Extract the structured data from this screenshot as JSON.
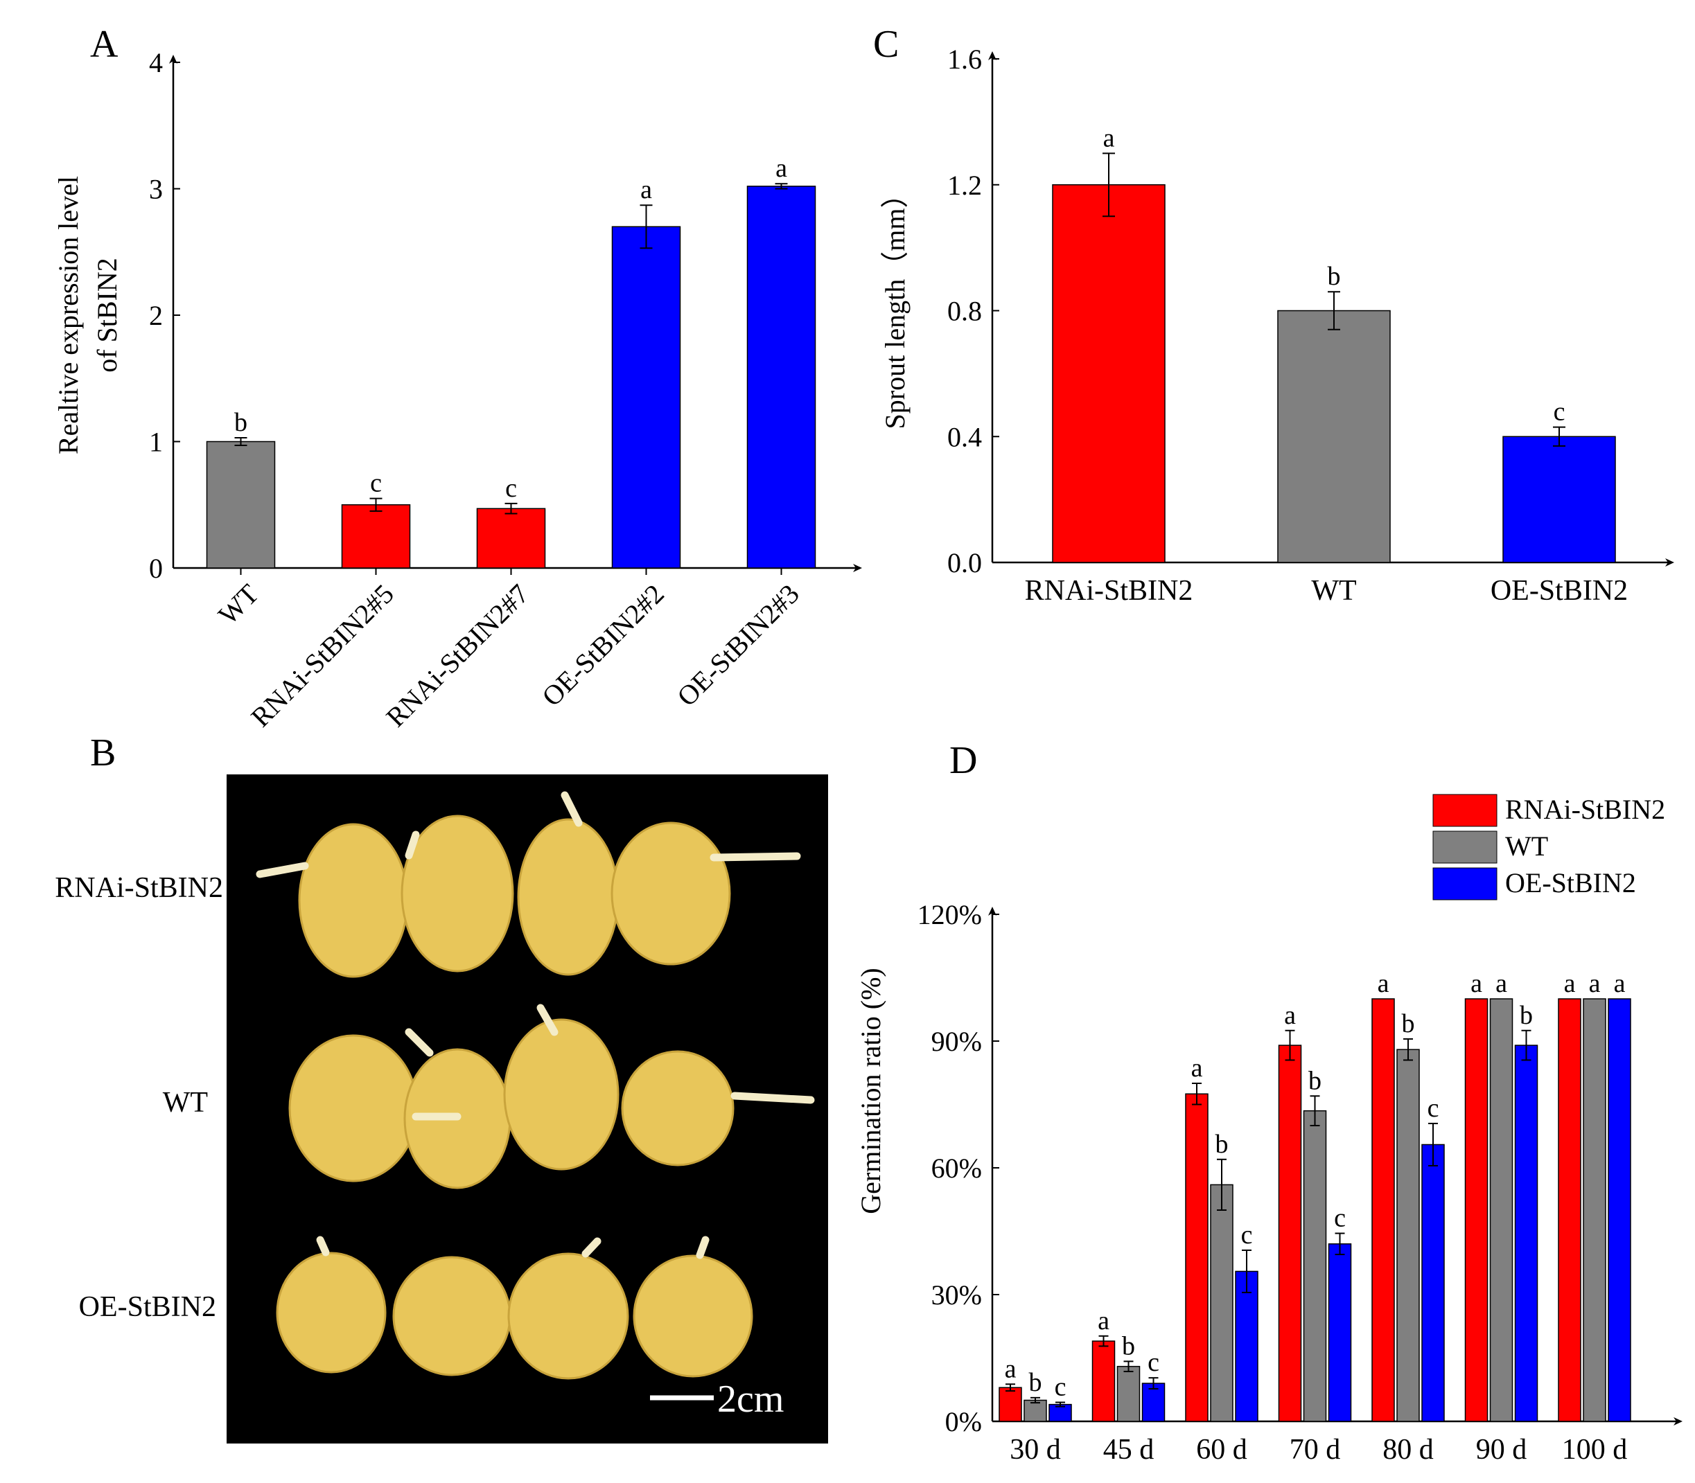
{
  "panels": {
    "A": {
      "label": "A"
    },
    "B": {
      "label": "B",
      "rows": [
        "RNAi-StBIN2",
        "WT",
        "OE-StBIN2"
      ],
      "scale_bar": "2cm"
    },
    "C": {
      "label": "C"
    },
    "D": {
      "label": "D"
    }
  },
  "colors": {
    "rnai": "#ff0000",
    "wt": "#808080",
    "oe": "#0000ff",
    "photo_bg": "#000000",
    "tuber": "#e8c65a",
    "sprout": "#f4ecc8"
  },
  "chart_data": [
    {
      "id": "A",
      "type": "bar",
      "ylabel_line1": "Realtive expression level",
      "ylabel_line2": "of StBIN2",
      "ylim": [
        0,
        4
      ],
      "yticks": [
        "0",
        "1",
        "2",
        "3",
        "4"
      ],
      "categories": [
        "WT",
        "RNAi-StBIN2#5",
        "RNAi-StBIN2#7",
        "OE-StBIN2#2",
        "OE-StBIN2#3"
      ],
      "values": [
        1.0,
        0.5,
        0.47,
        2.7,
        3.02
      ],
      "errors": [
        0.03,
        0.05,
        0.04,
        0.17,
        0.02
      ],
      "letters": [
        "b",
        "c",
        "c",
        "a",
        "a"
      ],
      "color_keys": [
        "wt",
        "rnai",
        "rnai",
        "oe",
        "oe"
      ]
    },
    {
      "id": "C",
      "type": "bar",
      "ylabel": "Sprout length（mm）",
      "ylim": [
        0,
        1.6
      ],
      "yticks": [
        "0.0",
        "0.4",
        "0.8",
        "1.2",
        "1.6"
      ],
      "categories": [
        "RNAi-StBIN2",
        "WT",
        "OE-StBIN2"
      ],
      "values": [
        1.2,
        0.8,
        0.4
      ],
      "errors": [
        0.1,
        0.06,
        0.03
      ],
      "letters": [
        "a",
        "b",
        "c"
      ],
      "color_keys": [
        "rnai",
        "wt",
        "oe"
      ]
    },
    {
      "id": "D",
      "type": "bar",
      "ylabel": "Germination ratio (%)",
      "ylim": [
        0,
        120
      ],
      "yticks": [
        "0%",
        "30%",
        "60%",
        "90%",
        "120%"
      ],
      "categories": [
        "30 d",
        "45 d",
        "60 d",
        "70 d",
        "80 d",
        "90 d",
        "100 d"
      ],
      "legend": [
        "RNAi-StBIN2",
        "WT",
        "OE-StBIN2"
      ],
      "legend_position": "top-right",
      "series": [
        {
          "name": "RNAi-StBIN2",
          "color_key": "rnai",
          "values": [
            8,
            19,
            77.5,
            89,
            100,
            100,
            100
          ],
          "errors": [
            0.8,
            1.2,
            2.5,
            3.5,
            0,
            0,
            0
          ],
          "letters": [
            "a",
            "a",
            "a",
            "a",
            "a",
            "a",
            "a"
          ]
        },
        {
          "name": "WT",
          "color_key": "wt",
          "values": [
            5,
            13,
            56,
            73.5,
            88,
            100,
            100
          ],
          "errors": [
            0.6,
            1.2,
            6,
            3.5,
            2.5,
            0,
            0
          ],
          "letters": [
            "b",
            "b",
            "b",
            "b",
            "b",
            "a",
            "a"
          ]
        },
        {
          "name": "OE-StBIN2",
          "color_key": "oe",
          "values": [
            4,
            9,
            35.5,
            42,
            65.5,
            89,
            100
          ],
          "errors": [
            0.5,
            1.3,
            5,
            2.5,
            5,
            3.5,
            0
          ],
          "letters": [
            "c",
            "c",
            "c",
            "c",
            "c",
            "b",
            "a"
          ]
        }
      ]
    }
  ]
}
